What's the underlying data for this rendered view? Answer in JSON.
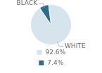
{
  "chart_data": {
    "type": "pie",
    "categories": [
      "WHITE",
      "BLACK"
    ],
    "values": [
      92.6,
      7.4
    ],
    "value_labels": [
      "92.6%",
      "7.4%"
    ],
    "colors": [
      "#d6e4ed",
      "#2e6b8a"
    ],
    "legend": "bottom"
  }
}
